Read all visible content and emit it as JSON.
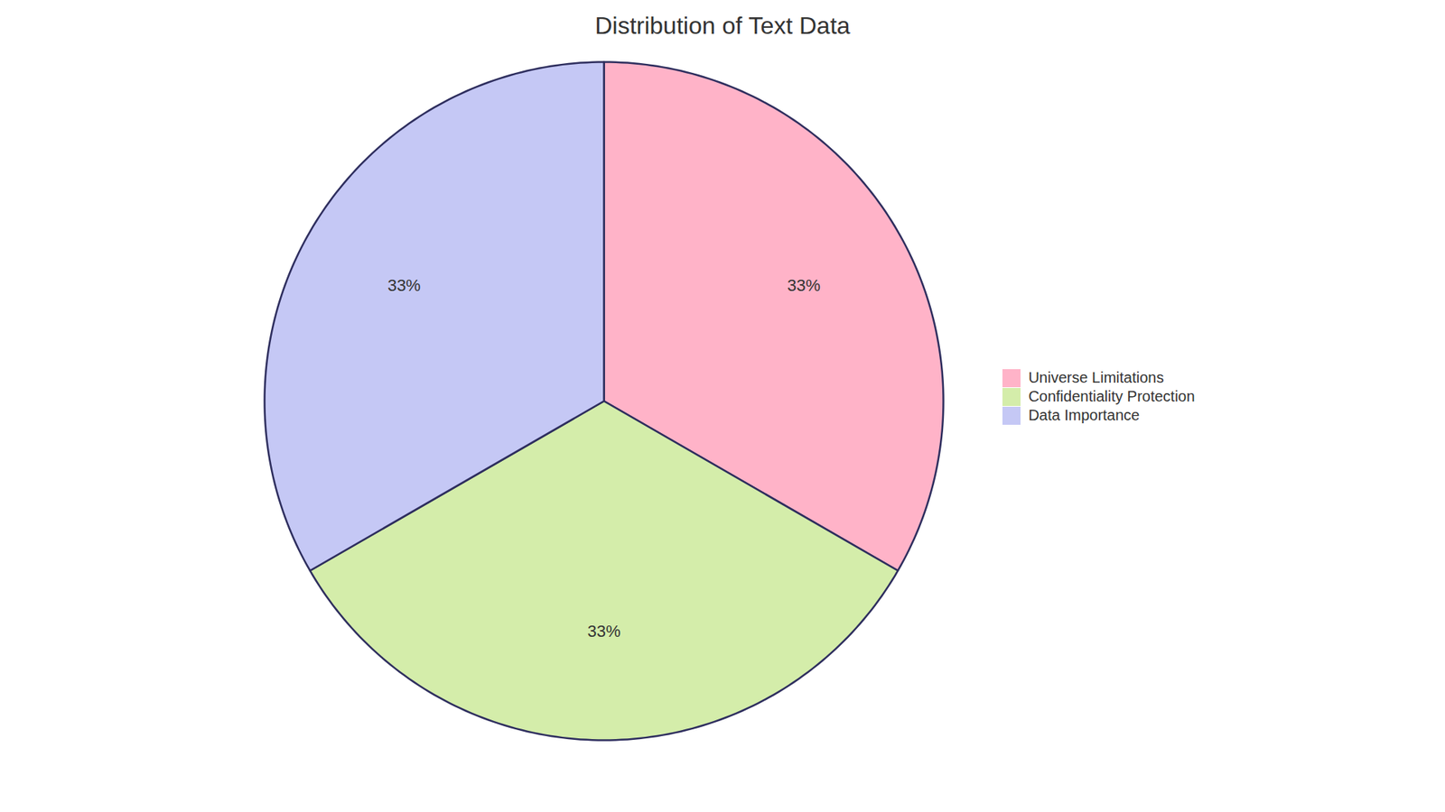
{
  "chart_data": {
    "type": "pie",
    "title": "Distribution of Text Data",
    "categories": [
      "Universe Limitations",
      "Confidentiality Protection",
      "Data Importance"
    ],
    "values": [
      33,
      33,
      33
    ],
    "value_labels": [
      "33%",
      "33%",
      "33%"
    ],
    "colors": [
      "#FFB3C8",
      "#D4EDAA",
      "#C5C8F5"
    ],
    "data_labels": true,
    "legend": "right"
  }
}
